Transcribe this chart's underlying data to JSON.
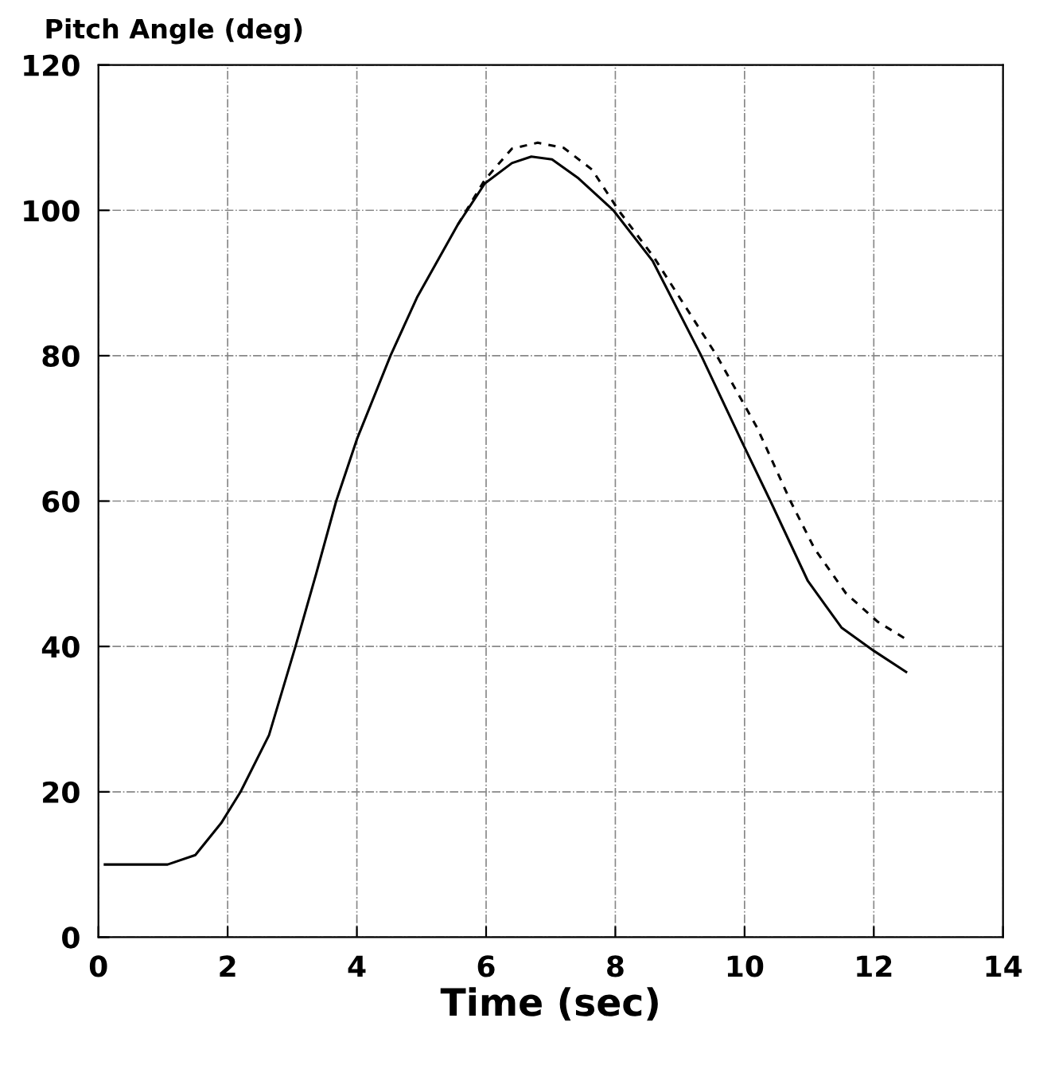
{
  "chart_data": {
    "type": "line",
    "title": "Pitch Angle (deg)",
    "xlabel": "Time (sec)",
    "xlim": [
      0,
      14
    ],
    "xticks": [
      0,
      2,
      4,
      6,
      8,
      10,
      12,
      14
    ],
    "ylim": [
      0,
      120
    ],
    "yticks": [
      0,
      20,
      40,
      60,
      80,
      100,
      120
    ],
    "grid": true,
    "marker": "none",
    "series": [
      {
        "color": "#000000",
        "line_style": "solid",
        "x": [
          0.1,
          1.07,
          1.5,
          1.9,
          2.2,
          2.64,
          3.05,
          3.37,
          3.68,
          4.0,
          4.52,
          4.93,
          5.56,
          5.98,
          6.4,
          6.7,
          7.02,
          7.43,
          7.97,
          8.58,
          9.33,
          9.94,
          10.4,
          10.98,
          11.5,
          12.0,
          12.5
        ],
        "values": [
          10,
          10,
          11.3,
          15.7,
          20,
          27.8,
          40,
          50,
          60,
          68.5,
          80,
          88,
          98,
          103.7,
          106.5,
          107.4,
          107,
          104.4,
          100,
          93,
          80,
          68.5,
          60,
          49,
          42.6,
          39.4,
          36.5
        ]
      },
      {
        "color": "#000000",
        "line_style": "dashed",
        "x": [
          5.56,
          5.98,
          6.4,
          6.8,
          7.2,
          7.64,
          8.05,
          8.6,
          9.57,
          10.2,
          10.71,
          11.08,
          11.57,
          12.06,
          12.5
        ],
        "values": [
          98,
          104.2,
          108.5,
          109.3,
          108.6,
          105.6,
          100,
          93.5,
          80,
          70,
          60,
          53.5,
          47.3,
          43.4,
          41
        ]
      }
    ]
  }
}
